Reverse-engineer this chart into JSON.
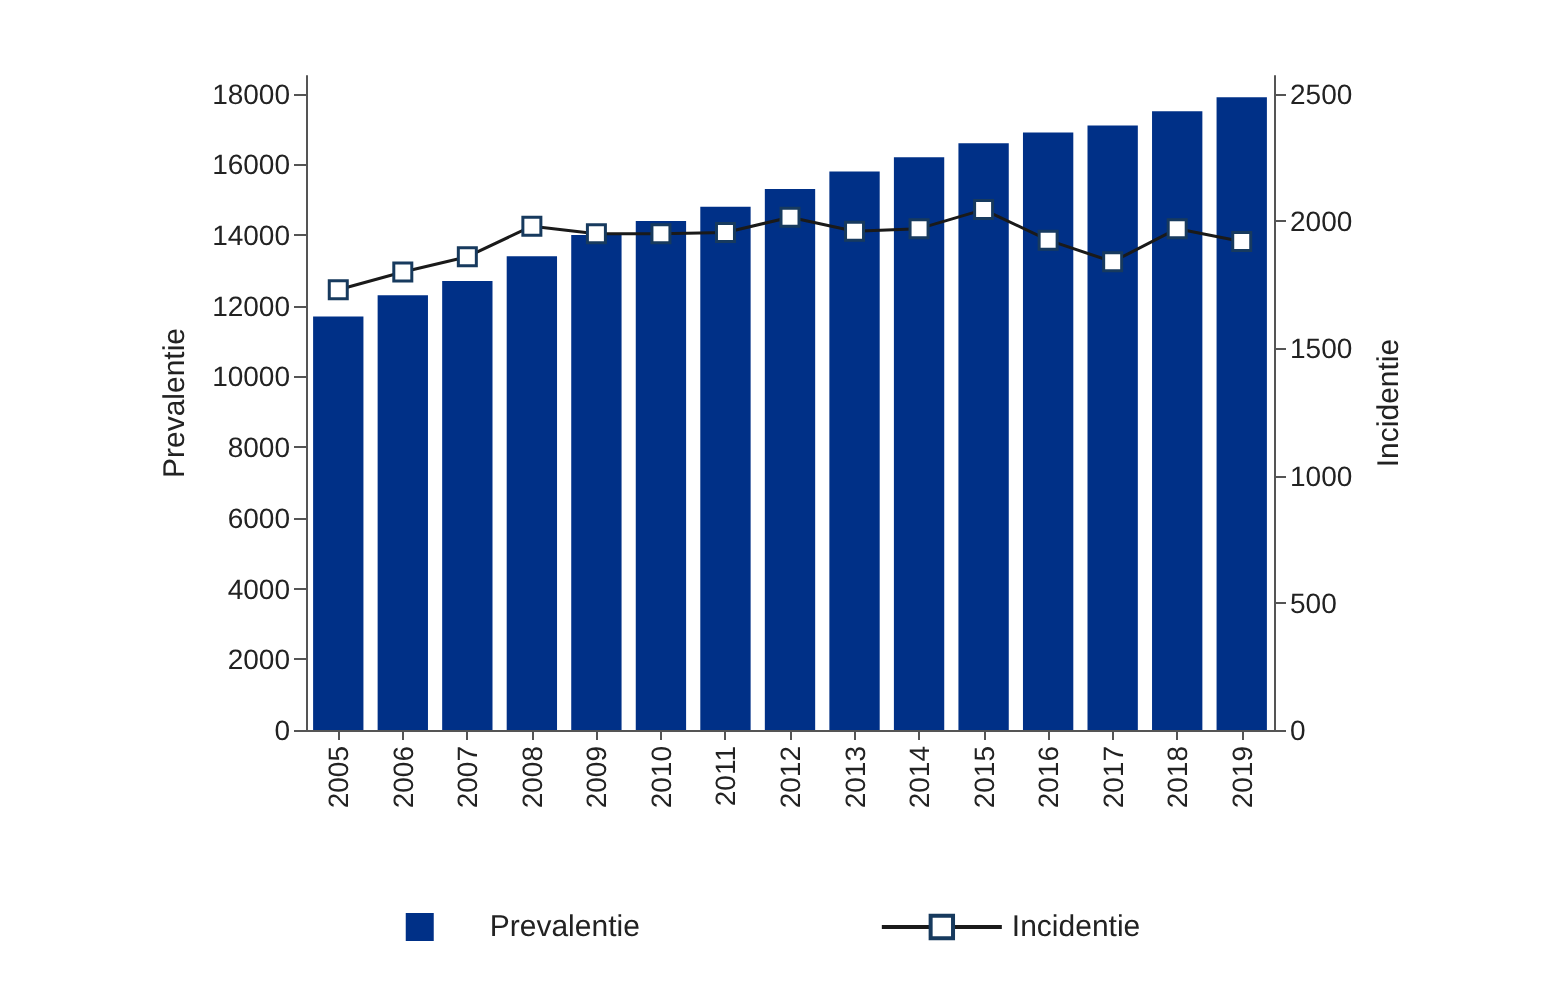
{
  "chart_data": {
    "type": "bar",
    "categories": [
      "2005",
      "2006",
      "2007",
      "2008",
      "2009",
      "2010",
      "2011",
      "2012",
      "2013",
      "2014",
      "2015",
      "2016",
      "2017",
      "2018",
      "2019"
    ],
    "series": [
      {
        "name": "Prevalentie",
        "color": "#003087",
        "values": [
          11700,
          12300,
          12700,
          13400,
          14000,
          14400,
          14800,
          15300,
          15800,
          16200,
          16600,
          16900,
          17100,
          17500,
          17900
        ]
      },
      {
        "name": "Incidentie",
        "type": "line",
        "axis": "y2",
        "color": "#1a1a1a",
        "marker": "square",
        "values": [
          1730,
          1800,
          1860,
          1980,
          1950,
          1950,
          1955,
          2015,
          1960,
          1970,
          2045,
          1925,
          1840,
          1970,
          1920
        ]
      }
    ],
    "ylabel": "Prevalentie",
    "y2label": "Incidentie",
    "ylim": [
      0,
      18500
    ],
    "yticks": [
      0,
      2000,
      4000,
      6000,
      8000,
      10000,
      12000,
      14000,
      16000,
      18000
    ],
    "y2lim": [
      0,
      2570
    ],
    "y2ticks": [
      0,
      500,
      1000,
      1500,
      2000,
      2500
    ],
    "grid": false,
    "legend": "bottom"
  }
}
